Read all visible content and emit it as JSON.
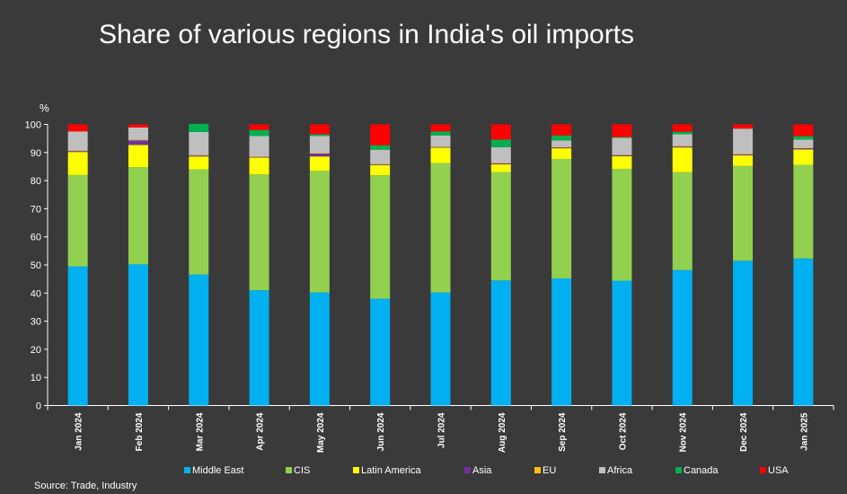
{
  "title": "Share of various regions in India's oil imports",
  "source": "Source: Trade, Industry",
  "colors": {
    "background": "#3a3a3a",
    "text": "#ffffff"
  },
  "chart_data": {
    "type": "bar",
    "stacked": true,
    "title": "Share of various regions in India's oil imports",
    "ylabel": "%",
    "xlabel": "",
    "ylim": [
      0,
      100
    ],
    "yticks": [
      0,
      10,
      20,
      30,
      40,
      50,
      60,
      70,
      80,
      90,
      100
    ],
    "grid": false,
    "legend_position": "bottom",
    "categories": [
      "Jan 2024",
      "Feb 2024",
      "Mar 2024",
      "Apr 2024",
      "May 2024",
      "Jun 2024",
      "Jul 2024",
      "Aug 2024",
      "Sep 2024",
      "Oct 2024",
      "Nov 2024",
      "Dec 2024",
      "Jan 2025"
    ],
    "series": [
      {
        "name": "Middle East",
        "color": "#00b0f0",
        "values": [
          49.5,
          50.2,
          46.6,
          41.0,
          40.2,
          38.0,
          40.2,
          44.5,
          45.2,
          44.4,
          48.2,
          51.5,
          52.3
        ]
      },
      {
        "name": "CIS",
        "color": "#92d050",
        "values": [
          32.5,
          34.6,
          37.4,
          41.2,
          43.3,
          43.9,
          46.0,
          38.5,
          42.5,
          39.8,
          34.8,
          33.7,
          33.3
        ]
      },
      {
        "name": "Latin America",
        "color": "#ffff00",
        "values": [
          8.2,
          7.9,
          4.6,
          6.0,
          5.1,
          3.6,
          5.5,
          2.8,
          3.8,
          4.5,
          8.8,
          3.8,
          5.5
        ]
      },
      {
        "name": "Asia",
        "color": "#7030a0",
        "values": [
          0.3,
          1.6,
          0.3,
          0.2,
          1.0,
          0.2,
          0.2,
          0.3,
          0.3,
          0.3,
          0.3,
          0.3,
          0.4
        ]
      },
      {
        "name": "EU",
        "color": "#ffc000",
        "values": [
          0.2,
          0.2,
          0.2,
          0.2,
          0.2,
          0.2,
          0.2,
          0.2,
          0.2,
          0.2,
          0.2,
          0.2,
          0.2
        ]
      },
      {
        "name": "Africa",
        "color": "#bfbfbf",
        "values": [
          6.8,
          4.4,
          8.2,
          7.3,
          6.1,
          5.1,
          4.0,
          5.6,
          2.3,
          6.0,
          4.2,
          9.0,
          2.9
        ]
      },
      {
        "name": "Canada",
        "color": "#00b050",
        "values": [
          0.0,
          0.0,
          2.9,
          2.1,
          0.6,
          1.6,
          1.4,
          2.7,
          1.8,
          0.3,
          0.9,
          0.0,
          1.2
        ]
      },
      {
        "name": "USA",
        "color": "#ff0000",
        "values": [
          2.5,
          1.1,
          0.0,
          2.0,
          3.5,
          7.4,
          2.5,
          5.4,
          3.9,
          4.5,
          2.6,
          1.5,
          4.2
        ]
      }
    ]
  }
}
